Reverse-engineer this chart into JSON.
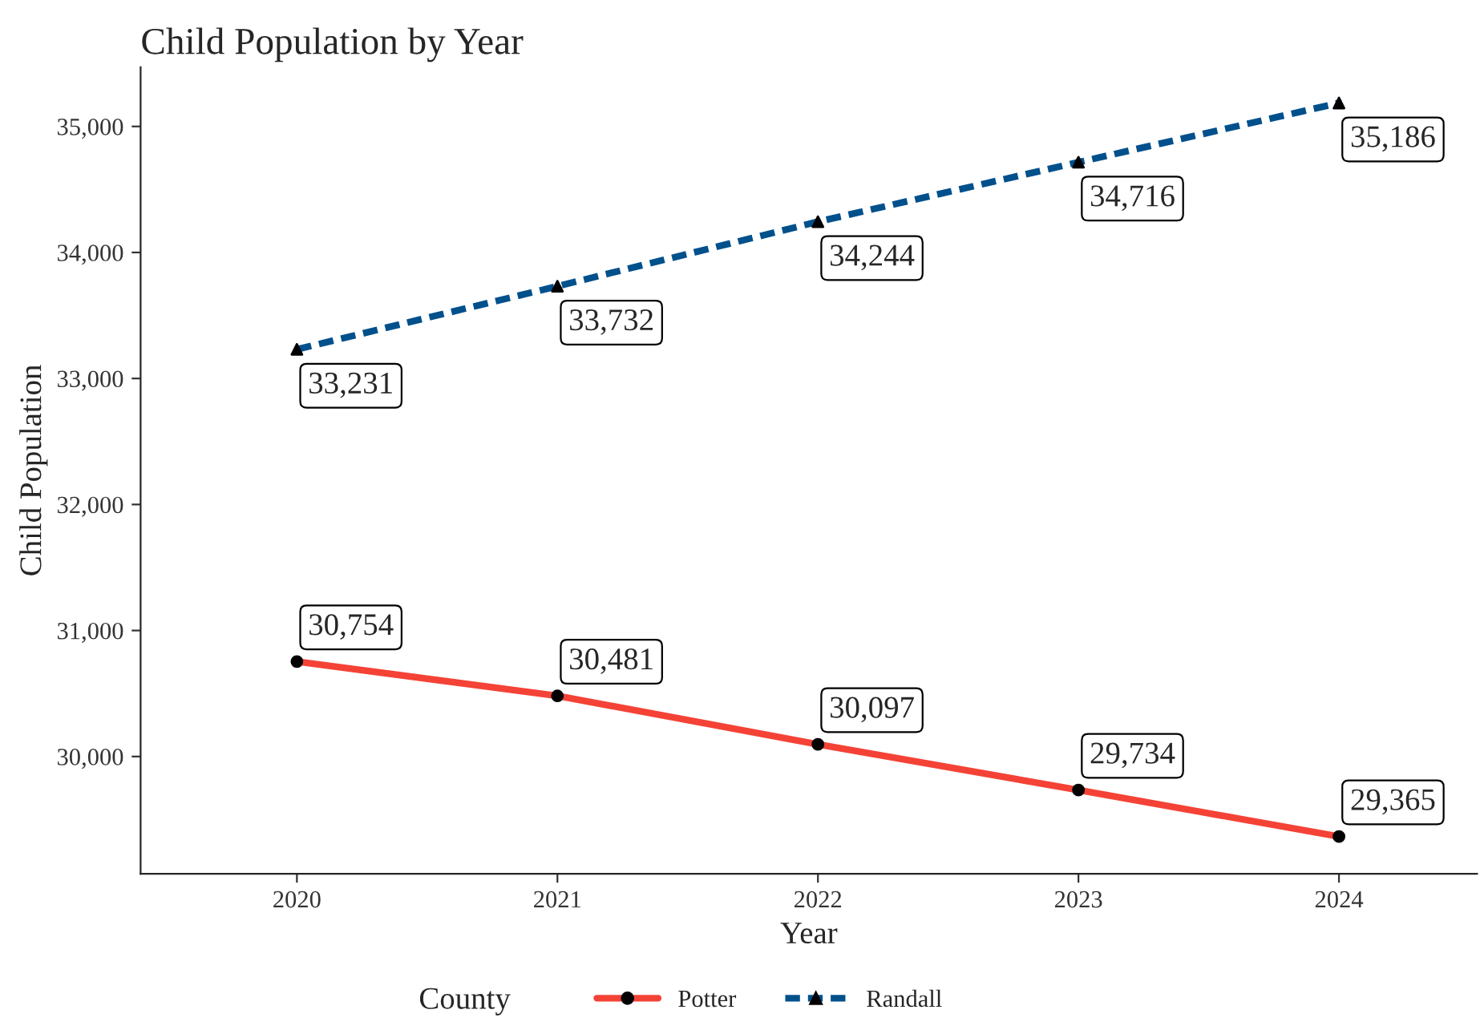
{
  "chart_data": {
    "type": "line",
    "title": "Child Population by Year",
    "xlabel": "Year",
    "ylabel": "Child Population",
    "legend_title": "County",
    "x": [
      2020,
      2021,
      2022,
      2023,
      2024
    ],
    "series": [
      {
        "name": "Potter",
        "color": "#f44336",
        "values": [
          30754,
          30481,
          30097,
          29734,
          29365
        ],
        "value_labels": [
          "30,754",
          "30,481",
          "30,097",
          "29,734",
          "29,365"
        ],
        "marker": "circle",
        "line_style": "solid"
      },
      {
        "name": "Randall",
        "color": "#00508c",
        "values": [
          33231,
          33732,
          34244,
          34716,
          35186
        ],
        "value_labels": [
          "33,231",
          "33,732",
          "34,244",
          "34,716",
          "35,186"
        ],
        "marker": "triangle",
        "line_style": "dashed"
      }
    ],
    "xlim": [
      2019.4,
      2024.53
    ],
    "xticks": [
      2020,
      2021,
      2022,
      2023,
      2024
    ],
    "ylim": [
      29070,
      35470
    ],
    "yticks": [
      {
        "value": 30000,
        "label": "30,000"
      },
      {
        "value": 31000,
        "label": "31,000"
      },
      {
        "value": 32000,
        "label": "32,000"
      },
      {
        "value": 33000,
        "label": "33,000"
      },
      {
        "value": 34000,
        "label": "34,000"
      },
      {
        "value": 35000,
        "label": "35,000"
      }
    ],
    "grid": false,
    "legend": "bottom"
  }
}
